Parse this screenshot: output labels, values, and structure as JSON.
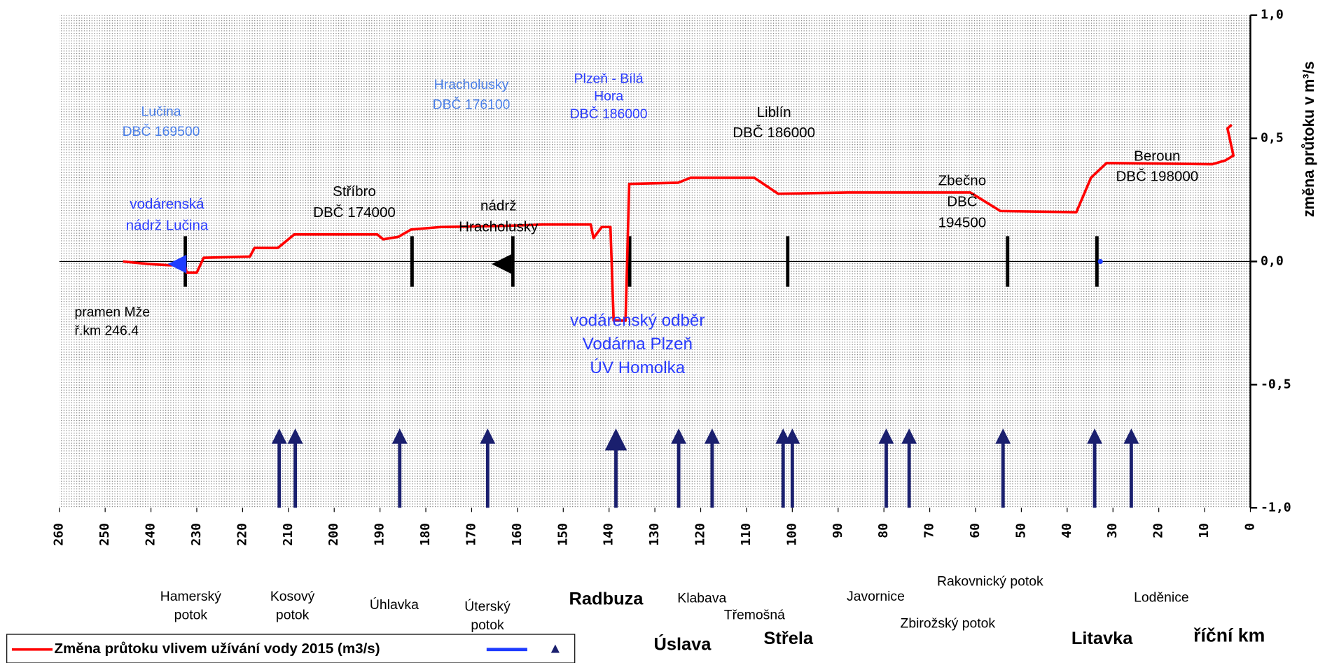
{
  "chart_data": {
    "type": "line",
    "x_label": "říční km",
    "y_label": "změna průtoku v m³/s",
    "xlim": [
      260,
      0
    ],
    "xticks": [
      260,
      250,
      240,
      230,
      220,
      210,
      200,
      190,
      180,
      170,
      160,
      150,
      140,
      130,
      120,
      110,
      100,
      90,
      80,
      70,
      60,
      50,
      40,
      30,
      20,
      10,
      0
    ],
    "ylim": [
      -1,
      1
    ],
    "yticks": [
      {
        "value": 1,
        "label": "1,0"
      },
      {
        "value": 0.5,
        "label": "0,5"
      },
      {
        "value": 0,
        "label": "0,0"
      },
      {
        "value": -0.5,
        "label": "-0,5"
      },
      {
        "value": -1,
        "label": "-1,0"
      }
    ],
    "series": [
      {
        "name": "Změna průtoku vlivem užívání vody 2015 (m3/s)",
        "color": "#ff0000",
        "x": [
          246.1,
          240.6,
          236,
          232.6,
          232.2,
          230,
          228.5,
          218.4,
          217.4,
          212.3,
          208.7,
          190.6,
          189.3,
          186,
          183.2,
          176.7,
          161.9,
          154.5,
          144,
          143.4,
          141.6,
          139.7,
          139,
          136.4,
          135.6,
          124.9,
          122.2,
          108.3,
          103.1,
          87.9,
          61.1,
          54.6,
          38,
          34.8,
          31.4,
          8.3,
          5.5,
          3.7,
          5,
          4.1
        ],
        "values": [
          0,
          -0.01,
          -0.015,
          -0.015,
          -0.045,
          -0.045,
          0.015,
          0.02,
          0.055,
          0.055,
          0.11,
          0.11,
          0.09,
          0.1,
          0.13,
          0.14,
          0.145,
          0.15,
          0.15,
          0.095,
          0.14,
          0.14,
          -0.24,
          -0.24,
          0.315,
          0.32,
          0.34,
          0.34,
          0.275,
          0.28,
          0.28,
          0.205,
          0.2,
          0.34,
          0.4,
          0.395,
          0.41,
          0.43,
          0.54,
          0.555
        ]
      }
    ],
    "site_marks_x": [
      232.5,
      183,
      161,
      135.5,
      101,
      53,
      33.5
    ],
    "tributary_km": [
      212,
      208.5,
      185.7,
      166.5,
      138.5,
      124.8,
      117.5,
      102,
      100,
      79.5,
      74.5,
      54,
      34,
      26
    ],
    "tributary_names": [
      [
        "Hamerský",
        "potok"
      ],
      [
        "Kosový",
        "potok"
      ],
      [
        "Úhlavka"
      ],
      [
        "Úterský",
        "potok"
      ],
      [
        "Radbuza"
      ],
      [
        "Úslava"
      ],
      [
        "Klabava"
      ],
      [
        "Třemošná"
      ],
      [
        "Střela"
      ],
      [
        "Javornice"
      ],
      [
        "Rakovnický potok"
      ],
      [
        "Zbirožský potok"
      ],
      [
        "Litavka"
      ],
      [
        "Loděnice"
      ]
    ],
    "annotations": [
      {
        "lines": [
          "Lučina",
          "DBČ 169500"
        ],
        "color": "#4a7fe8"
      },
      {
        "lines": [
          "vodárenská",
          "nádrž Lučina"
        ],
        "color": "#2a3cff"
      },
      {
        "lines": [
          "pramen Mže",
          "ř.km 246.4"
        ],
        "color": "#000000"
      },
      {
        "lines": [
          "Stříbro",
          "DBČ 174000"
        ],
        "color": "#000000"
      },
      {
        "lines": [
          "Hracholusky",
          "DBČ 176100"
        ],
        "color": "#4a7fe8"
      },
      {
        "lines": [
          "nádrž",
          "Hracholusky"
        ],
        "color": "#000000"
      },
      {
        "lines": [
          "Plzeň - Bílá",
          "Hora",
          "DBČ 186000"
        ],
        "color": "#2a3cff"
      },
      {
        "lines": [
          "vodárenský odběr",
          "Vodárna Plzeň",
          "ÚV Homolka"
        ],
        "color": "#2a3cff"
      },
      {
        "lines": [
          "Liblín",
          "DBČ 186000"
        ],
        "color": "#000000"
      },
      {
        "lines": [
          "Zbečno",
          "DBČ",
          "194500"
        ],
        "color": "#000000"
      },
      {
        "lines": [
          "Beroun",
          "DBČ 198000"
        ],
        "color": "#000000"
      }
    ]
  }
}
